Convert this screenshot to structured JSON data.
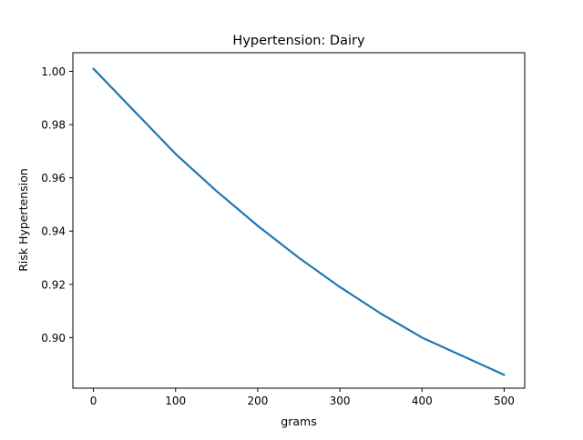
{
  "chart_data": {
    "type": "line",
    "title": "Hypertension: Dairy",
    "xlabel": "grams",
    "ylabel": "Risk Hypertension",
    "xlim": [
      -25,
      525
    ],
    "ylim": [
      0.881,
      1.007
    ],
    "x_ticks": [
      0,
      100,
      200,
      300,
      400,
      500
    ],
    "x_tick_labels": [
      "0",
      "100",
      "200",
      "300",
      "400",
      "500"
    ],
    "y_ticks": [
      0.9,
      0.92,
      0.94,
      0.96,
      0.98,
      1.0
    ],
    "y_tick_labels": [
      "0.90",
      "0.92",
      "0.94",
      "0.96",
      "0.98",
      "1.00"
    ],
    "grid": false,
    "legend": "none",
    "series": [
      {
        "color": "#1f77b4",
        "x": [
          0,
          50,
          100,
          150,
          200,
          250,
          300,
          350,
          400,
          450,
          500
        ],
        "y": [
          1.001,
          0.985,
          0.969,
          0.955,
          0.942,
          0.93,
          0.919,
          0.909,
          0.9,
          0.893,
          0.886
        ]
      }
    ]
  }
}
